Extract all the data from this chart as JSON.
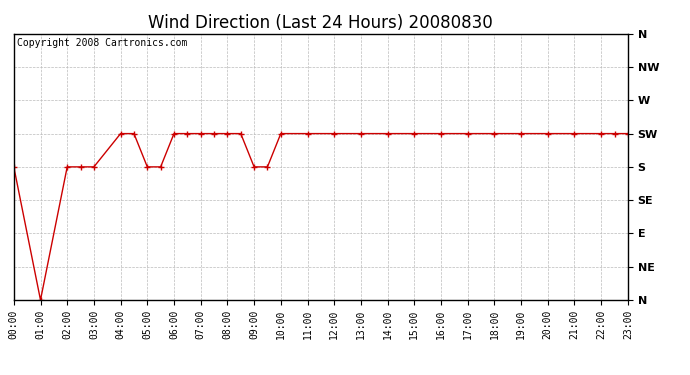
{
  "title": "Wind Direction (Last 24 Hours) 20080830",
  "copyright_text": "Copyright 2008 Cartronics.com",
  "outer_bg_color": "#ffffff",
  "plot_bg_color": "#ffffff",
  "grid_color": "#bbbbbb",
  "line_color": "#cc0000",
  "marker_color": "#cc0000",
  "x_labels": [
    "00:00",
    "01:00",
    "02:00",
    "03:00",
    "04:00",
    "05:00",
    "06:00",
    "07:00",
    "08:00",
    "09:00",
    "10:00",
    "11:00",
    "12:00",
    "13:00",
    "14:00",
    "15:00",
    "16:00",
    "17:00",
    "18:00",
    "19:00",
    "20:00",
    "21:00",
    "22:00",
    "23:00"
  ],
  "y_labels": [
    "N",
    "NE",
    "E",
    "SE",
    "S",
    "SW",
    "W",
    "NW",
    "N"
  ],
  "y_values": [
    0,
    45,
    90,
    135,
    180,
    225,
    270,
    315,
    360
  ],
  "x_hours": [
    0,
    1,
    2,
    2.5,
    3,
    4,
    4.5,
    5,
    5.5,
    6,
    6.5,
    7,
    7.5,
    8,
    8.5,
    9,
    9.5,
    10,
    11,
    12,
    13,
    14,
    15,
    16,
    17,
    18,
    19,
    20,
    21,
    22,
    22.5,
    23
  ],
  "y_dirs": [
    180,
    0,
    180,
    180,
    180,
    225,
    225,
    180,
    180,
    225,
    225,
    225,
    225,
    225,
    225,
    180,
    180,
    225,
    225,
    225,
    225,
    225,
    225,
    225,
    225,
    225,
    225,
    225,
    225,
    225,
    225,
    225
  ],
  "xlim": [
    0,
    23
  ],
  "ylim": [
    0,
    360
  ],
  "figsize": [
    6.9,
    3.75
  ],
  "dpi": 100,
  "title_fontsize": 12,
  "tick_fontsize": 7,
  "y_tick_fontsize": 8,
  "copyright_fontsize": 7
}
